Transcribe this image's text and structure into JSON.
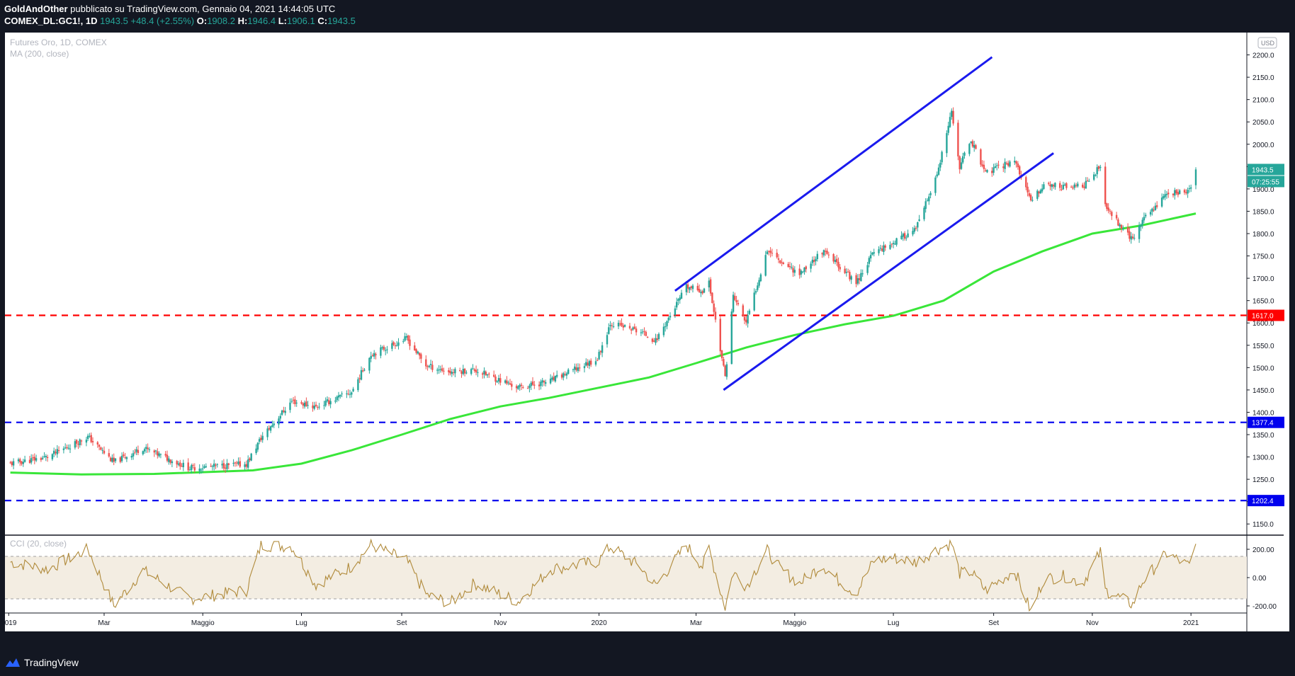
{
  "header": {
    "author": "GoldAndOther",
    "published": "pubblicato su TradingView.com, Gennaio 04, 2021 14:44:05 UTC",
    "symbol": "COMEX_DL:GC1!, 1D",
    "last": "1943.5",
    "change": "+48.4 (+2.55%)",
    "o_label": "O:",
    "o_value": "1908.2",
    "h_label": "H:",
    "h_value": "1946.4",
    "l_label": "L:",
    "l_value": "1906.1",
    "c_label": "C:",
    "c_value": "1943.5"
  },
  "legend": {
    "title": "Futures Oro, 1D, COMEX",
    "ma": "MA (200, close)",
    "cci": "CCI (20, close)"
  },
  "footer": {
    "brand": "TradingView"
  },
  "colors": {
    "up": "#26a69a",
    "down": "#ef5350",
    "ma": "#39e639",
    "channel": "#1a1aee",
    "support_red": "#ff0000",
    "support_blue": "#0000ee",
    "cci": "#b08a3a",
    "cci_band": "#f3ede2"
  },
  "chart_data": [
    {
      "type": "candlestick",
      "title": "Futures Oro, 1D, COMEX",
      "currency": "USD",
      "ylim": [
        1125,
        2250
      ],
      "y_ticks": [
        "1150.0",
        "1200.0",
        "1250.0",
        "1300.0",
        "1350.0",
        "1400.0",
        "1450.0",
        "1500.0",
        "1550.0",
        "1600.0",
        "1650.0",
        "1700.0",
        "1750.0",
        "1800.0",
        "1850.0",
        "1900.0",
        "1950.0",
        "2000.0",
        "2050.0",
        "2100.0",
        "2150.0",
        "2200.0"
      ],
      "x_ticks": [
        "2019",
        "Mar",
        "Maggio",
        "Lug",
        "Set",
        "Nov",
        "2020",
        "Mar",
        "Maggio",
        "Lug",
        "Set",
        "Nov",
        "2021"
      ],
      "price_anchors": [
        [
          "2019-01-02",
          1285
        ],
        [
          "2019-01-25",
          1300
        ],
        [
          "2019-02-19",
          1345
        ],
        [
          "2019-03-07",
          1288
        ],
        [
          "2019-03-25",
          1320
        ],
        [
          "2019-04-23",
          1275
        ],
        [
          "2019-05-28",
          1284
        ],
        [
          "2019-06-06",
          1342
        ],
        [
          "2019-06-25",
          1425
        ],
        [
          "2019-07-10",
          1412
        ],
        [
          "2019-08-01",
          1445
        ],
        [
          "2019-08-13",
          1530
        ],
        [
          "2019-09-04",
          1565
        ],
        [
          "2019-09-16",
          1505
        ],
        [
          "2019-10-01",
          1490
        ],
        [
          "2019-10-16",
          1495
        ],
        [
          "2019-11-12",
          1455
        ],
        [
          "2019-12-02",
          1470
        ],
        [
          "2019-12-31",
          1520
        ],
        [
          "2020-01-08",
          1600
        ],
        [
          "2020-01-27",
          1580
        ],
        [
          "2020-02-05",
          1560
        ],
        [
          "2020-02-24",
          1680
        ],
        [
          "2020-03-05",
          1672
        ],
        [
          "2020-03-09",
          1690
        ],
        [
          "2020-03-19",
          1478
        ],
        [
          "2020-03-24",
          1660
        ],
        [
          "2020-04-01",
          1600
        ],
        [
          "2020-04-14",
          1765
        ],
        [
          "2020-04-22",
          1740
        ],
        [
          "2020-05-04",
          1710
        ],
        [
          "2020-05-18",
          1760
        ],
        [
          "2020-05-28",
          1730
        ],
        [
          "2020-06-08",
          1690
        ],
        [
          "2020-06-19",
          1760
        ],
        [
          "2020-07-01",
          1780
        ],
        [
          "2020-07-15",
          1810
        ],
        [
          "2020-07-28",
          1930
        ],
        [
          "2020-08-06",
          2070
        ],
        [
          "2020-08-11",
          1950
        ],
        [
          "2020-08-18",
          2010
        ],
        [
          "2020-08-27",
          1935
        ],
        [
          "2020-09-14",
          1965
        ],
        [
          "2020-09-24",
          1870
        ],
        [
          "2020-10-02",
          1910
        ],
        [
          "2020-10-15",
          1905
        ],
        [
          "2020-10-26",
          1905
        ],
        [
          "2020-11-06",
          1950
        ],
        [
          "2020-11-09",
          1860
        ],
        [
          "2020-11-26",
          1785
        ],
        [
          "2020-12-02",
          1830
        ],
        [
          "2020-12-17",
          1890
        ],
        [
          "2020-12-31",
          1895
        ],
        [
          "2021-01-04",
          1943.5
        ]
      ],
      "moving_average_200": [
        [
          "2019-01-02",
          1265
        ],
        [
          "2019-02-15",
          1261
        ],
        [
          "2019-04-01",
          1262
        ],
        [
          "2019-06-01",
          1270
        ],
        [
          "2019-07-01",
          1285
        ],
        [
          "2019-08-01",
          1315
        ],
        [
          "2019-09-01",
          1350
        ],
        [
          "2019-10-01",
          1385
        ],
        [
          "2019-11-01",
          1413
        ],
        [
          "2019-12-01",
          1432
        ],
        [
          "2020-01-01",
          1455
        ],
        [
          "2020-02-01",
          1478
        ],
        [
          "2020-03-01",
          1510
        ],
        [
          "2020-04-01",
          1545
        ],
        [
          "2020-05-01",
          1573
        ],
        [
          "2020-06-01",
          1597
        ],
        [
          "2020-07-01",
          1616
        ],
        [
          "2020-08-01",
          1650
        ],
        [
          "2020-09-01",
          1715
        ],
        [
          "2020-10-01",
          1760
        ],
        [
          "2020-11-01",
          1800
        ],
        [
          "2020-12-01",
          1818
        ],
        [
          "2021-01-04",
          1845
        ]
      ],
      "channel_upper": [
        [
          "2020-02-17",
          1672
        ],
        [
          "2020-08-31",
          2195
        ]
      ],
      "channel_lower": [
        [
          "2020-03-18",
          1450
        ],
        [
          "2020-10-08",
          1980
        ]
      ],
      "horizontal_levels": [
        {
          "value": 1617.0,
          "label": "1617.0",
          "style": "red-dashed"
        },
        {
          "value": 1377.4,
          "label": "1377.4",
          "style": "blue-dashed"
        },
        {
          "value": 1202.4,
          "label": "1202.4",
          "style": "blue-dashed"
        }
      ],
      "last_price_label": "1943.5",
      "countdown_label": "07:25:55",
      "currency_label": "USD"
    },
    {
      "type": "line",
      "title": "CCI (20, close)",
      "ylim": [
        -250,
        300
      ],
      "y_ticks": [
        "200.00",
        "0.00",
        "-200.00"
      ],
      "band": [
        -150,
        150
      ],
      "anchors": [
        [
          "2019-01-02",
          110
        ],
        [
          "2019-01-25",
          60
        ],
        [
          "2019-02-19",
          200
        ],
        [
          "2019-03-07",
          -200
        ],
        [
          "2019-03-25",
          50
        ],
        [
          "2019-04-23",
          -150
        ],
        [
          "2019-05-28",
          -90
        ],
        [
          "2019-06-06",
          230
        ],
        [
          "2019-06-25",
          220
        ],
        [
          "2019-07-10",
          -50
        ],
        [
          "2019-08-01",
          80
        ],
        [
          "2019-08-13",
          230
        ],
        [
          "2019-09-04",
          120
        ],
        [
          "2019-09-16",
          -120
        ],
        [
          "2019-10-01",
          -180
        ],
        [
          "2019-10-16",
          -40
        ],
        [
          "2019-11-12",
          -170
        ],
        [
          "2019-12-02",
          60
        ],
        [
          "2019-12-31",
          110
        ],
        [
          "2020-01-08",
          220
        ],
        [
          "2020-01-27",
          70
        ],
        [
          "2020-02-05",
          -60
        ],
        [
          "2020-02-24",
          230
        ],
        [
          "2020-03-05",
          80
        ],
        [
          "2020-03-09",
          200
        ],
        [
          "2020-03-19",
          -210
        ],
        [
          "2020-03-24",
          40
        ],
        [
          "2020-04-01",
          -60
        ],
        [
          "2020-04-14",
          190
        ],
        [
          "2020-04-22",
          60
        ],
        [
          "2020-05-04",
          -40
        ],
        [
          "2020-05-18",
          90
        ],
        [
          "2020-05-28",
          -20
        ],
        [
          "2020-06-08",
          -110
        ],
        [
          "2020-06-19",
          120
        ],
        [
          "2020-07-01",
          140
        ],
        [
          "2020-07-15",
          110
        ],
        [
          "2020-07-28",
          200
        ],
        [
          "2020-08-06",
          240
        ],
        [
          "2020-08-11",
          30
        ],
        [
          "2020-08-18",
          40
        ],
        [
          "2020-08-27",
          -90
        ],
        [
          "2020-09-14",
          50
        ],
        [
          "2020-09-24",
          -240
        ],
        [
          "2020-10-02",
          -10
        ],
        [
          "2020-10-15",
          10
        ],
        [
          "2020-10-26",
          -40
        ],
        [
          "2020-11-06",
          180
        ],
        [
          "2020-11-09",
          -90
        ],
        [
          "2020-11-26",
          -190
        ],
        [
          "2020-12-02",
          -30
        ],
        [
          "2020-12-17",
          170
        ],
        [
          "2020-12-31",
          80
        ],
        [
          "2021-01-04",
          230
        ]
      ]
    }
  ]
}
